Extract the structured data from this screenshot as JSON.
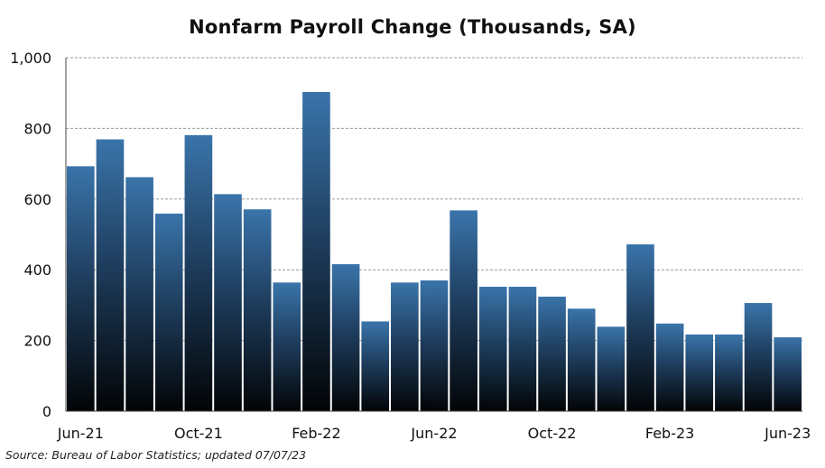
{
  "chart_data": {
    "type": "bar",
    "title": "Nonfarm Payroll Change (Thousands, SA)",
    "xlabel": "",
    "ylabel": "",
    "ylim": [
      0,
      1000
    ],
    "yticks": [
      "0",
      "200",
      "400",
      "600",
      "800",
      "1,000"
    ],
    "ytick_values": [
      0,
      200,
      400,
      600,
      800,
      1000
    ],
    "grid": "horizontal dashed",
    "legend": "none",
    "categories": [
      "Jun-21",
      "Jul-21",
      "Aug-21",
      "Sep-21",
      "Oct-21",
      "Nov-21",
      "Dec-21",
      "Jan-22",
      "Feb-22",
      "Mar-22",
      "Apr-22",
      "May-22",
      "Jun-22",
      "Jul-22",
      "Aug-22",
      "Sep-22",
      "Oct-22",
      "Nov-22",
      "Dec-22",
      "Jan-23",
      "Feb-23",
      "Mar-23",
      "Apr-23",
      "May-23",
      "Jun-23"
    ],
    "values": [
      693,
      769,
      662,
      559,
      781,
      614,
      571,
      364,
      903,
      416,
      254,
      364,
      370,
      568,
      352,
      352,
      324,
      290,
      239,
      472,
      248,
      217,
      217,
      306,
      209
    ],
    "xtick_labels": [
      {
        "index": 0,
        "label": "Jun-21"
      },
      {
        "index": 4,
        "label": "Oct-21"
      },
      {
        "index": 8,
        "label": "Feb-22"
      },
      {
        "index": 12,
        "label": "Jun-22"
      },
      {
        "index": 16,
        "label": "Oct-22"
      },
      {
        "index": 20,
        "label": "Feb-23"
      },
      {
        "index": 24,
        "label": "Jun-23"
      }
    ],
    "colors": {
      "bar_top": "#3a74aa",
      "bar_mid": "#1f3f60",
      "bar_bottom": "#020406",
      "grid": "#999999",
      "axis": "#444444"
    }
  },
  "source": "Source: Bureau of Labor Statistics; updated 07/07/23"
}
